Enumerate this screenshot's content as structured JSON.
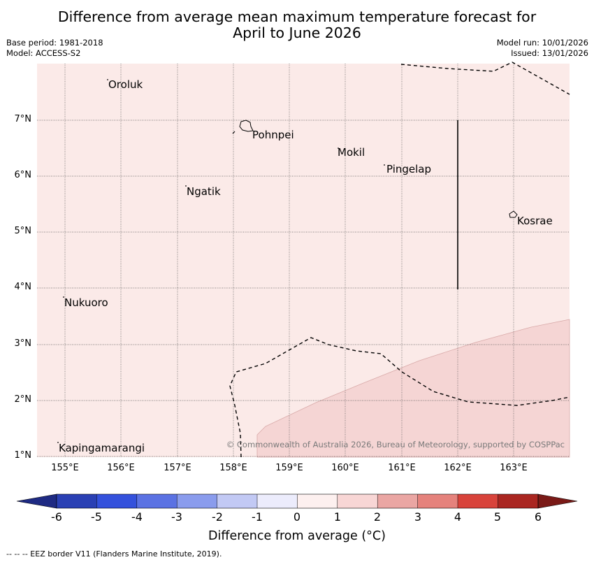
{
  "header": {
    "title_line1": "Difference from average mean maximum temperature forecast for",
    "title_line2": "April to June 2026",
    "base_period": "Base period: 1981-2018",
    "model": "Model: ACCESS-S2",
    "model_run": "Model run: 10/01/2026",
    "issued": "Issued: 13/01/2026"
  },
  "map": {
    "lat_labels": [
      "7°N",
      "6°N",
      "5°N",
      "4°N",
      "3°N",
      "2°N",
      "1°N"
    ],
    "lon_labels": [
      "155°E",
      "156°E",
      "157°E",
      "158°E",
      "159°E",
      "160°E",
      "161°E",
      "162°E",
      "163°E"
    ],
    "places": [
      "Oroluk",
      "Pohnpei",
      "Mokil",
      "Pingelap",
      "Ngatik",
      "Kosrae",
      "Nukuoro",
      "Kapingamarangi"
    ],
    "copyright": "© Commonwealth of Australia 2026, Bureau of Meteorology, supported by COSPPac",
    "background_color": "#fbeae8",
    "band_color": "#f5d5d4"
  },
  "colorbar": {
    "ticks": [
      "-6",
      "-5",
      "-4",
      "-3",
      "-2",
      "-1",
      "0",
      "1",
      "2",
      "3",
      "4",
      "5",
      "6"
    ],
    "colors": [
      "#1e2a83",
      "#2a40b4",
      "#3451dc",
      "#5b72e3",
      "#8a9ced",
      "#c2c9f4",
      "#ececfc",
      "#fdf0ef",
      "#f8d6d5",
      "#eaa6a3",
      "#e5827c",
      "#d8433b",
      "#aa2621",
      "#7a1a17"
    ],
    "label": "Difference from average (°C)"
  },
  "footer": {
    "eez_note": "--  --  -- EEZ border V11 (Flanders Marine Institute, 2019)."
  }
}
